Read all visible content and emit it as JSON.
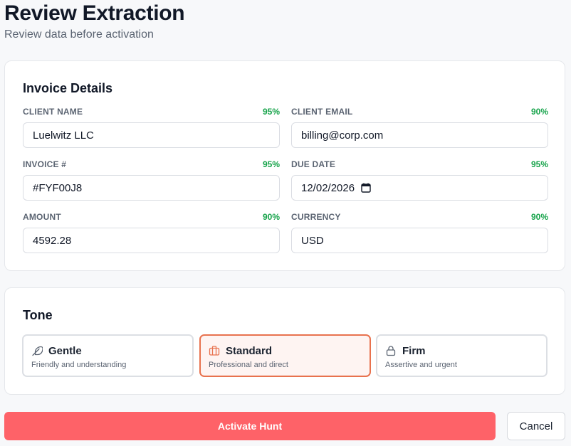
{
  "header": {
    "title": "Review Extraction",
    "subtitle": "Review data before activation"
  },
  "invoice": {
    "title": "Invoice Details",
    "fields": [
      {
        "label": "CLIENT NAME",
        "confidence": "95%",
        "value": "Luelwitz LLC"
      },
      {
        "label": "CLIENT EMAIL",
        "confidence": "90%",
        "value": "billing@corp.com"
      },
      {
        "label": "INVOICE #",
        "confidence": "95%",
        "value": "#FYF00J8"
      },
      {
        "label": "DUE DATE",
        "confidence": "95%",
        "value": "12/02/2026"
      },
      {
        "label": "AMOUNT",
        "confidence": "90%",
        "value": "4592.28"
      },
      {
        "label": "CURRENCY",
        "confidence": "90%",
        "value": "USD"
      }
    ]
  },
  "tone": {
    "title": "Tone",
    "options": [
      {
        "title": "Gentle",
        "description": "Friendly and understanding",
        "icon": "feather-icon"
      },
      {
        "title": "Standard",
        "description": "Professional and direct",
        "icon": "briefcase-icon",
        "selected": true
      },
      {
        "title": "Firm",
        "description": "Assertive and urgent",
        "icon": "lock-icon"
      }
    ]
  },
  "actions": {
    "activate_label": "Activate Hunt",
    "cancel_label": "Cancel"
  },
  "colors": {
    "accent": "#fe6268",
    "selected_border": "#e8724e",
    "confidence": "#16a34a"
  }
}
